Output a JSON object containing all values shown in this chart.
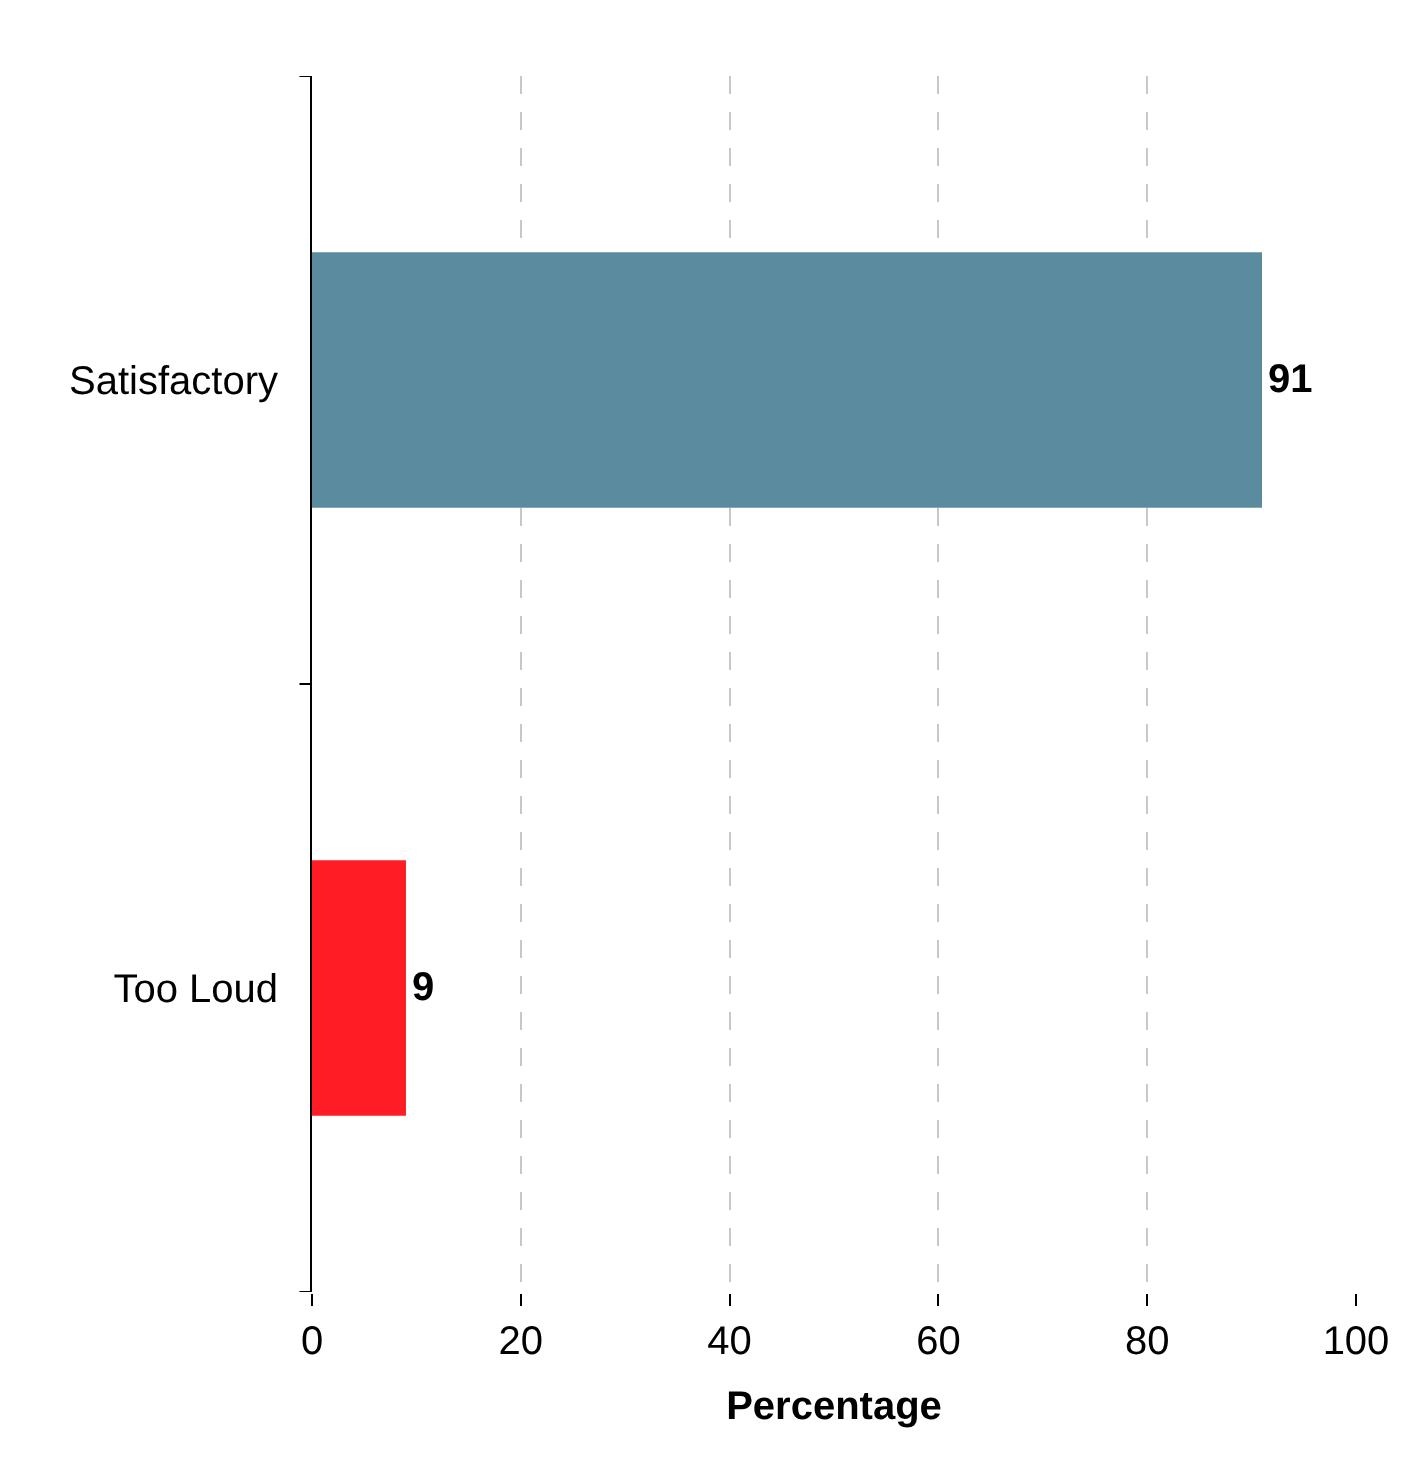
{
  "chart_data": {
    "type": "bar",
    "orientation": "horizontal",
    "xlabel": "Percentage",
    "categories": [
      "Satisfactory",
      "Too Loud"
    ],
    "values": [
      91,
      9
    ],
    "colors": [
      "#5a8b9f",
      "#ff1c24"
    ],
    "xlim": [
      0,
      100
    ],
    "xticks": [
      0,
      20,
      40,
      60,
      80,
      100
    ],
    "grid": "x",
    "legend": false,
    "data_labels": true
  }
}
